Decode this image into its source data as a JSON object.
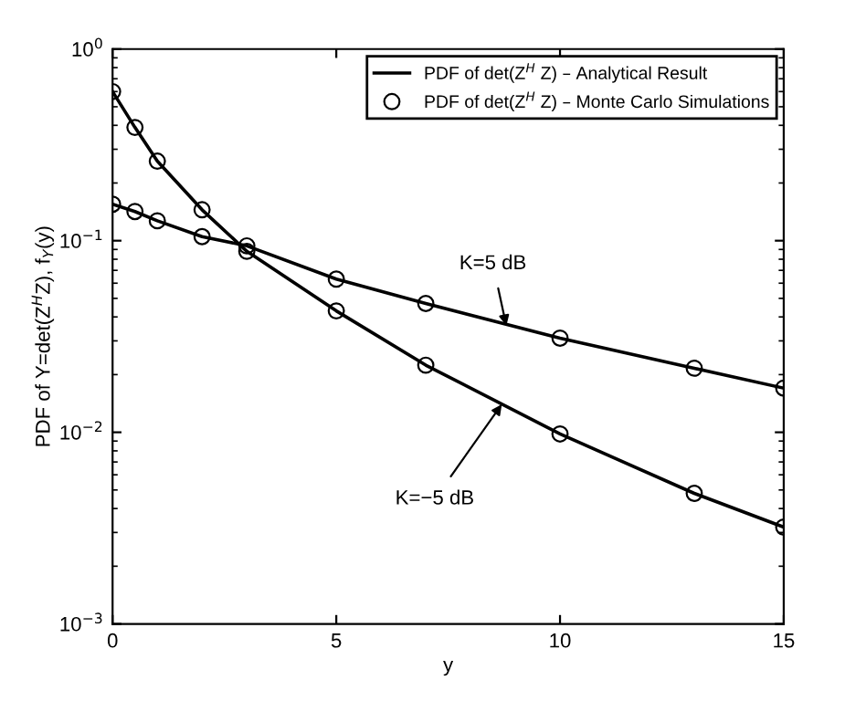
{
  "chart_data": {
    "type": "line",
    "xlabel": "y",
    "ylabel": "PDF of Y=det(Z$^{H}$Z), f$_{Y}$(y)",
    "x": [
      0,
      0.5,
      1,
      2,
      3,
      5,
      7,
      10,
      13,
      15
    ],
    "series": [
      {
        "name": "PDF of det(Z$^{H}$ Z) – Analytical Result",
        "marker": "none",
        "color": "#000000",
        "values": [
          0.155,
          0.142,
          0.127,
          0.105,
          0.094,
          0.063,
          0.047,
          0.031,
          0.0216,
          0.017
        ]
      },
      {
        "marker": "none",
        "color": "#000000",
        "values": [
          0.6,
          0.39,
          0.26,
          0.145,
          0.088,
          0.043,
          0.0224,
          0.0098,
          0.0048,
          0.0032
        ]
      },
      {
        "name": "PDF of det(Z$^{H}$ Z) – Monte Carlo Simulations",
        "type": "scatter",
        "marker": "circle",
        "color": "#000000",
        "values": [
          0.155,
          0.142,
          0.127,
          0.105,
          0.094,
          0.063,
          0.047,
          0.031,
          0.0216,
          0.017
        ]
      },
      {
        "type": "scatter",
        "marker": "circle",
        "color": "#000000",
        "values": [
          0.6,
          0.39,
          0.26,
          0.145,
          0.088,
          0.043,
          0.0224,
          0.0098,
          0.0048,
          0.0032
        ]
      }
    ],
    "log": "y",
    "xlim": [
      0,
      15
    ],
    "ylim": [
      0.001,
      1
    ],
    "xticks": [
      0,
      5,
      10,
      15
    ],
    "yticks": [
      {
        "value": 0.001,
        "label": "10$^{−3}$"
      },
      {
        "value": 0.01,
        "label": "10$^{−2}$"
      },
      {
        "value": 0.1,
        "label": "10$^{−1}$"
      },
      {
        "value": 1,
        "label": "10$^{0}$"
      }
    ],
    "annotations": [
      {
        "text": "K=5 dB",
        "x": 8.8,
        "y": 0.036
      },
      {
        "text": "K=−5 dB",
        "x": 8.7,
        "y": 0.014
      }
    ],
    "grid": false,
    "legend": "top right"
  }
}
